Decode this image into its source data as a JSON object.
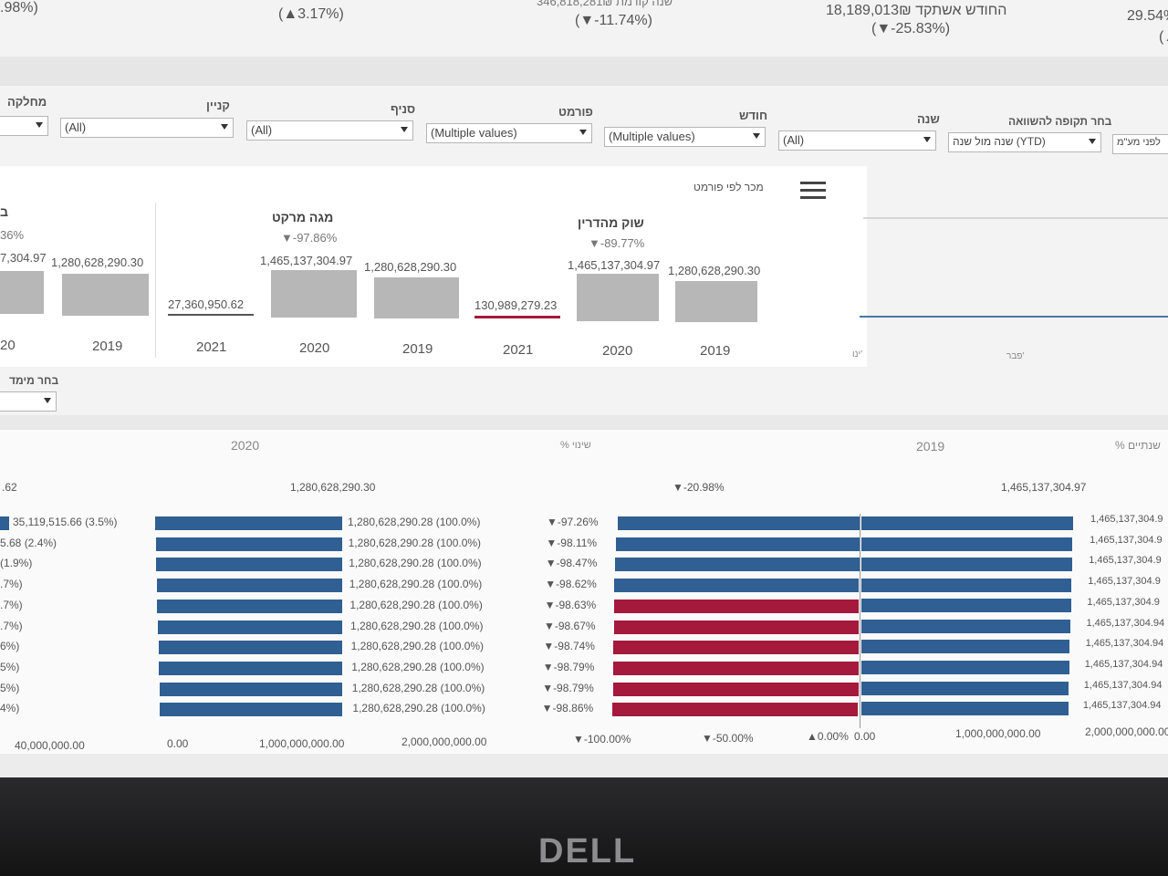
{
  "kpis": {
    "left_pct": ".98%)",
    "k2_change": "(▲3.17%)",
    "k3_title": "שנה קודמת 346,818,281₪",
    "k3_change": "(▼-11.74%)",
    "k4_title": "החודש אשתקד 18,189,013₪",
    "k4_change": "(▼-25.83%)",
    "k5_value": "29.54%",
    "k5_suffix": "(▲"
  },
  "filters": [
    {
      "label": "מחלקה",
      "value": ""
    },
    {
      "label": "קניין",
      "value": "(All)"
    },
    {
      "label": "סניף",
      "value": "(All)"
    },
    {
      "label": "פורמט",
      "value": "(Multiple values)"
    },
    {
      "label": "חודש",
      "value": "(Multiple values)"
    },
    {
      "label": "שנה",
      "value": "(All)"
    },
    {
      "label": "בחר תקופה להשוואה",
      "value": "שנה מול שנה (YTD)"
    },
    {
      "label": "",
      "value": "לפני מע\"מ"
    }
  ],
  "format_chart": {
    "title": "מכר לפי פורמט",
    "menu_icon": "hamburger-menu-icon",
    "left_cut": {
      "title_frag": "ב",
      "chg": "36%",
      "v2020": "7,304.97",
      "v2019": "1,280,628,290.30",
      "y2020": "20",
      "y2019": "2019"
    },
    "groups": [
      {
        "title": "מגה מרקט",
        "change": "▼-97.86%",
        "v2021": "27,360,950.62",
        "v2020": "1,465,137,304.97",
        "v2019": "1,280,628,290.30",
        "y2021": "2021",
        "y2020": "2020",
        "y2019": "2019"
      },
      {
        "title": "שוק מהדרין",
        "change": "▼-89.77%",
        "v2021": "130,989,279.23",
        "v2020": "1,465,137,304.97",
        "v2019": "1,280,628,290.30",
        "y2021": "2021",
        "y2020": "2020",
        "y2019": "2019"
      }
    ],
    "line_months": [
      "ינו'",
      "פבר'"
    ]
  },
  "dimension_select": {
    "label": "בחר מימד",
    "value": ""
  },
  "comparison": {
    "headers": {
      "y2020": "2020",
      "change": "% שינוי",
      "y2019": "2019",
      "yoy": "% שנתיים"
    },
    "totals": {
      "left": ".62",
      "y2020": "1,280,628,290.30",
      "change": "▼-20.98%",
      "y2019": "1,465,137,304.97"
    },
    "rows": [
      {
        "left": "35,119,515.66 (3.5%)",
        "v2020": "1,280,628,290.28 (100.0%)",
        "chg": "▼-97.26%",
        "chg_pct": -97.26,
        "v2019": "1,465,137,304.9",
        "neg": false
      },
      {
        "left": "5.68 (2.4%)",
        "v2020": "1,280,628,290.28 (100.0%)",
        "chg": "▼-98.11%",
        "chg_pct": -98.11,
        "v2019": "1,465,137,304.9",
        "neg": false
      },
      {
        "left": "(1.9%)",
        "v2020": "1,280,628,290.28 (100.0%)",
        "chg": "▼-98.47%",
        "chg_pct": -98.47,
        "v2019": "1,465,137,304.9",
        "neg": false
      },
      {
        "left": ".7%)",
        "v2020": "1,280,628,290.28 (100.0%)",
        "chg": "▼-98.62%",
        "chg_pct": -98.62,
        "v2019": "1,465,137,304.9",
        "neg": false
      },
      {
        "left": ".7%)",
        "v2020": "1,280,628,290.28 (100.0%)",
        "chg": "▼-98.63%",
        "chg_pct": -98.63,
        "v2019": "1,465,137,304.9",
        "neg": true
      },
      {
        "left": ".7%)",
        "v2020": "1,280,628,290.28 (100.0%)",
        "chg": "▼-98.67%",
        "chg_pct": -98.67,
        "v2019": "1,465,137,304.94",
        "neg": true
      },
      {
        "left": "6%)",
        "v2020": "1,280,628,290.28 (100.0%)",
        "chg": "▼-98.74%",
        "chg_pct": -98.74,
        "v2019": "1,465,137,304.94",
        "neg": true
      },
      {
        "left": "5%)",
        "v2020": "1,280,628,290.28 (100.0%)",
        "chg": "▼-98.79%",
        "chg_pct": -98.79,
        "v2019": "1,465,137,304.94",
        "neg": true
      },
      {
        "left": "5%)",
        "v2020": "1,280,628,290.28 (100.0%)",
        "chg": "▼-98.79%",
        "chg_pct": -98.79,
        "v2019": "1,465,137,304.94",
        "neg": true
      },
      {
        "left": "4%)",
        "v2020": "1,280,628,290.28 (100.0%)",
        "chg": "▼-98.86%",
        "chg_pct": -98.86,
        "v2019": "1,465,137,304.94",
        "neg": true
      }
    ],
    "axis_left": "40,000,000.00",
    "axis_2020": [
      "0.00",
      "1,000,000,000.00",
      "2,000,000,000.00"
    ],
    "axis_chg": [
      "▼-100.00%",
      "▼-50.00%",
      "▲0.00%"
    ],
    "axis_2019": [
      "0.00",
      "1,000,000,000.00",
      "2,000,000,000.00"
    ]
  },
  "monitor_brand": "DELL",
  "colors": {
    "blue": "#2f5f93",
    "red": "#a5193c",
    "grey": "#b7b7b7"
  }
}
